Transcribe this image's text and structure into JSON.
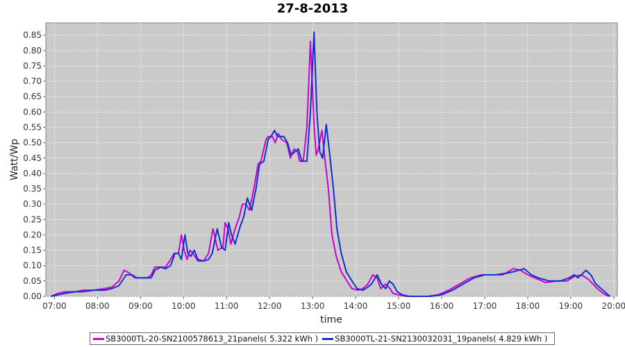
{
  "chart_data": {
    "type": "line",
    "title": "27-8-2013",
    "xlabel": "time",
    "ylabel": "Watt/Wp",
    "x_ticks": [
      "07:00",
      "08:00",
      "09:00",
      "10:00",
      "11:00",
      "12:00",
      "13:00",
      "14:00",
      "15:00",
      "16:00",
      "17:00",
      "18:00",
      "19:00",
      "20:00"
    ],
    "y_ticks": [
      "0.00",
      "0.05",
      "0.10",
      "0.15",
      "0.20",
      "0.25",
      "0.30",
      "0.35",
      "0.40",
      "0.45",
      "0.50",
      "0.55",
      "0.60",
      "0.65",
      "0.70",
      "0.75",
      "0.80",
      "0.85"
    ],
    "xlim": [
      "06:48",
      "20:05"
    ],
    "ylim": [
      0,
      0.89
    ],
    "grid": true,
    "legend_position": "bottom",
    "series": [
      {
        "name": "SB3000TL-20-SN2100578613_21panels( 5.322 kWh )",
        "color": "#cc00cc",
        "points": [
          [
            "06:55",
            0.0
          ],
          [
            "07:05",
            0.01
          ],
          [
            "07:15",
            0.015
          ],
          [
            "07:30",
            0.015
          ],
          [
            "07:40",
            0.02
          ],
          [
            "07:55",
            0.02
          ],
          [
            "08:10",
            0.025
          ],
          [
            "08:20",
            0.03
          ],
          [
            "08:30",
            0.05
          ],
          [
            "08:37",
            0.085
          ],
          [
            "08:45",
            0.075
          ],
          [
            "08:52",
            0.06
          ],
          [
            "09:00",
            0.06
          ],
          [
            "09:10",
            0.06
          ],
          [
            "09:15",
            0.07
          ],
          [
            "09:20",
            0.095
          ],
          [
            "09:28",
            0.095
          ],
          [
            "09:35",
            0.095
          ],
          [
            "09:42",
            0.12
          ],
          [
            "09:47",
            0.14
          ],
          [
            "09:51",
            0.14
          ],
          [
            "09:53",
            0.14
          ],
          [
            "09:57",
            0.2
          ],
          [
            "10:01",
            0.15
          ],
          [
            "10:05",
            0.12
          ],
          [
            "10:09",
            0.15
          ],
          [
            "10:13",
            0.14
          ],
          [
            "10:20",
            0.115
          ],
          [
            "10:28",
            0.115
          ],
          [
            "10:35",
            0.14
          ],
          [
            "10:41",
            0.22
          ],
          [
            "10:48",
            0.15
          ],
          [
            "10:55",
            0.16
          ],
          [
            "10:58",
            0.24
          ],
          [
            "11:02",
            0.22
          ],
          [
            "11:06",
            0.17
          ],
          [
            "11:12",
            0.22
          ],
          [
            "11:18",
            0.26
          ],
          [
            "11:22",
            0.3
          ],
          [
            "11:27",
            0.3
          ],
          [
            "11:32",
            0.28
          ],
          [
            "11:38",
            0.35
          ],
          [
            "11:44",
            0.43
          ],
          [
            "11:48",
            0.44
          ],
          [
            "11:55",
            0.51
          ],
          [
            "11:58",
            0.52
          ],
          [
            "12:04",
            0.52
          ],
          [
            "12:08",
            0.5
          ],
          [
            "12:12",
            0.53
          ],
          [
            "12:17",
            0.51
          ],
          [
            "12:24",
            0.5
          ],
          [
            "12:29",
            0.45
          ],
          [
            "12:34",
            0.48
          ],
          [
            "12:39",
            0.47
          ],
          [
            "12:42",
            0.44
          ],
          [
            "12:47",
            0.44
          ],
          [
            "12:52",
            0.55
          ],
          [
            "12:57",
            0.83
          ],
          [
            "13:02",
            0.56
          ],
          [
            "13:05",
            0.46
          ],
          [
            "13:08",
            0.48
          ],
          [
            "13:13",
            0.54
          ],
          [
            "13:17",
            0.45
          ],
          [
            "13:22",
            0.35
          ],
          [
            "13:27",
            0.2
          ],
          [
            "13:33",
            0.13
          ],
          [
            "13:40",
            0.08
          ],
          [
            "13:48",
            0.05
          ],
          [
            "13:55",
            0.025
          ],
          [
            "14:03",
            0.02
          ],
          [
            "14:10",
            0.025
          ],
          [
            "14:17",
            0.04
          ],
          [
            "14:24",
            0.07
          ],
          [
            "14:30",
            0.06
          ],
          [
            "14:35",
            0.025
          ],
          [
            "14:42",
            0.04
          ],
          [
            "14:48",
            0.025
          ],
          [
            "14:52",
            0.01
          ],
          [
            "15:00",
            0.005
          ],
          [
            "15:10",
            0.0
          ],
          [
            "15:40",
            0.0
          ],
          [
            "15:55",
            0.005
          ],
          [
            "16:10",
            0.02
          ],
          [
            "16:25",
            0.04
          ],
          [
            "16:40",
            0.06
          ],
          [
            "16:55",
            0.07
          ],
          [
            "17:10",
            0.07
          ],
          [
            "17:25",
            0.07
          ],
          [
            "17:40",
            0.09
          ],
          [
            "17:50",
            0.085
          ],
          [
            "18:00",
            0.07
          ],
          [
            "18:10",
            0.06
          ],
          [
            "18:25",
            0.045
          ],
          [
            "18:40",
            0.05
          ],
          [
            "18:55",
            0.05
          ],
          [
            "19:05",
            0.065
          ],
          [
            "19:15",
            0.07
          ],
          [
            "19:25",
            0.055
          ],
          [
            "19:35",
            0.03
          ],
          [
            "19:45",
            0.01
          ],
          [
            "19:53",
            0.0
          ]
        ]
      },
      {
        "name": "SB3000TL-21-SN2130032031_19panels( 4.829 kWh )",
        "color": "#0b2fd0",
        "points": [
          [
            "06:55",
            0.0
          ],
          [
            "07:05",
            0.005
          ],
          [
            "07:15",
            0.01
          ],
          [
            "07:30",
            0.015
          ],
          [
            "07:40",
            0.015
          ],
          [
            "07:55",
            0.02
          ],
          [
            "08:10",
            0.02
          ],
          [
            "08:20",
            0.025
          ],
          [
            "08:30",
            0.035
          ],
          [
            "08:40",
            0.07
          ],
          [
            "08:48",
            0.07
          ],
          [
            "08:55",
            0.06
          ],
          [
            "09:05",
            0.06
          ],
          [
            "09:15",
            0.06
          ],
          [
            "09:20",
            0.085
          ],
          [
            "09:28",
            0.095
          ],
          [
            "09:35",
            0.09
          ],
          [
            "09:42",
            0.1
          ],
          [
            "09:48",
            0.14
          ],
          [
            "09:53",
            0.14
          ],
          [
            "09:57",
            0.12
          ],
          [
            "10:02",
            0.2
          ],
          [
            "10:06",
            0.14
          ],
          [
            "10:10",
            0.13
          ],
          [
            "10:15",
            0.15
          ],
          [
            "10:20",
            0.12
          ],
          [
            "10:28",
            0.115
          ],
          [
            "10:35",
            0.12
          ],
          [
            "10:40",
            0.14
          ],
          [
            "10:47",
            0.22
          ],
          [
            "10:53",
            0.16
          ],
          [
            "10:58",
            0.15
          ],
          [
            "11:03",
            0.24
          ],
          [
            "11:07",
            0.2
          ],
          [
            "11:12",
            0.17
          ],
          [
            "11:18",
            0.22
          ],
          [
            "11:24",
            0.26
          ],
          [
            "11:29",
            0.32
          ],
          [
            "11:35",
            0.28
          ],
          [
            "11:41",
            0.35
          ],
          [
            "11:46",
            0.43
          ],
          [
            "11:52",
            0.44
          ],
          [
            "11:58",
            0.51
          ],
          [
            "12:02",
            0.52
          ],
          [
            "12:07",
            0.54
          ],
          [
            "12:11",
            0.52
          ],
          [
            "12:16",
            0.52
          ],
          [
            "12:20",
            0.52
          ],
          [
            "12:25",
            0.5
          ],
          [
            "12:30",
            0.46
          ],
          [
            "12:35",
            0.47
          ],
          [
            "12:40",
            0.48
          ],
          [
            "12:45",
            0.44
          ],
          [
            "12:52",
            0.44
          ],
          [
            "12:57",
            0.6
          ],
          [
            "13:02",
            0.86
          ],
          [
            "13:06",
            0.6
          ],
          [
            "13:10",
            0.47
          ],
          [
            "13:14",
            0.45
          ],
          [
            "13:19",
            0.56
          ],
          [
            "13:23",
            0.48
          ],
          [
            "13:29",
            0.35
          ],
          [
            "13:34",
            0.22
          ],
          [
            "13:40",
            0.14
          ],
          [
            "13:47",
            0.08
          ],
          [
            "13:55",
            0.05
          ],
          [
            "14:02",
            0.025
          ],
          [
            "14:10",
            0.02
          ],
          [
            "14:17",
            0.03
          ],
          [
            "14:22",
            0.04
          ],
          [
            "14:30",
            0.07
          ],
          [
            "14:36",
            0.04
          ],
          [
            "14:42",
            0.025
          ],
          [
            "14:47",
            0.05
          ],
          [
            "14:52",
            0.04
          ],
          [
            "14:58",
            0.015
          ],
          [
            "15:05",
            0.005
          ],
          [
            "15:15",
            0.0
          ],
          [
            "15:45",
            0.0
          ],
          [
            "16:00",
            0.005
          ],
          [
            "16:15",
            0.02
          ],
          [
            "16:30",
            0.04
          ],
          [
            "16:45",
            0.06
          ],
          [
            "17:00",
            0.07
          ],
          [
            "17:15",
            0.07
          ],
          [
            "17:30",
            0.075
          ],
          [
            "17:40",
            0.08
          ],
          [
            "17:55",
            0.09
          ],
          [
            "18:05",
            0.07
          ],
          [
            "18:15",
            0.06
          ],
          [
            "18:30",
            0.05
          ],
          [
            "18:45",
            0.05
          ],
          [
            "18:58",
            0.06
          ],
          [
            "19:05",
            0.07
          ],
          [
            "19:10",
            0.06
          ],
          [
            "19:15",
            0.07
          ],
          [
            "19:21",
            0.085
          ],
          [
            "19:28",
            0.07
          ],
          [
            "19:35",
            0.04
          ],
          [
            "19:45",
            0.02
          ],
          [
            "19:52",
            0.005
          ],
          [
            "19:55",
            0.0
          ]
        ]
      }
    ]
  }
}
